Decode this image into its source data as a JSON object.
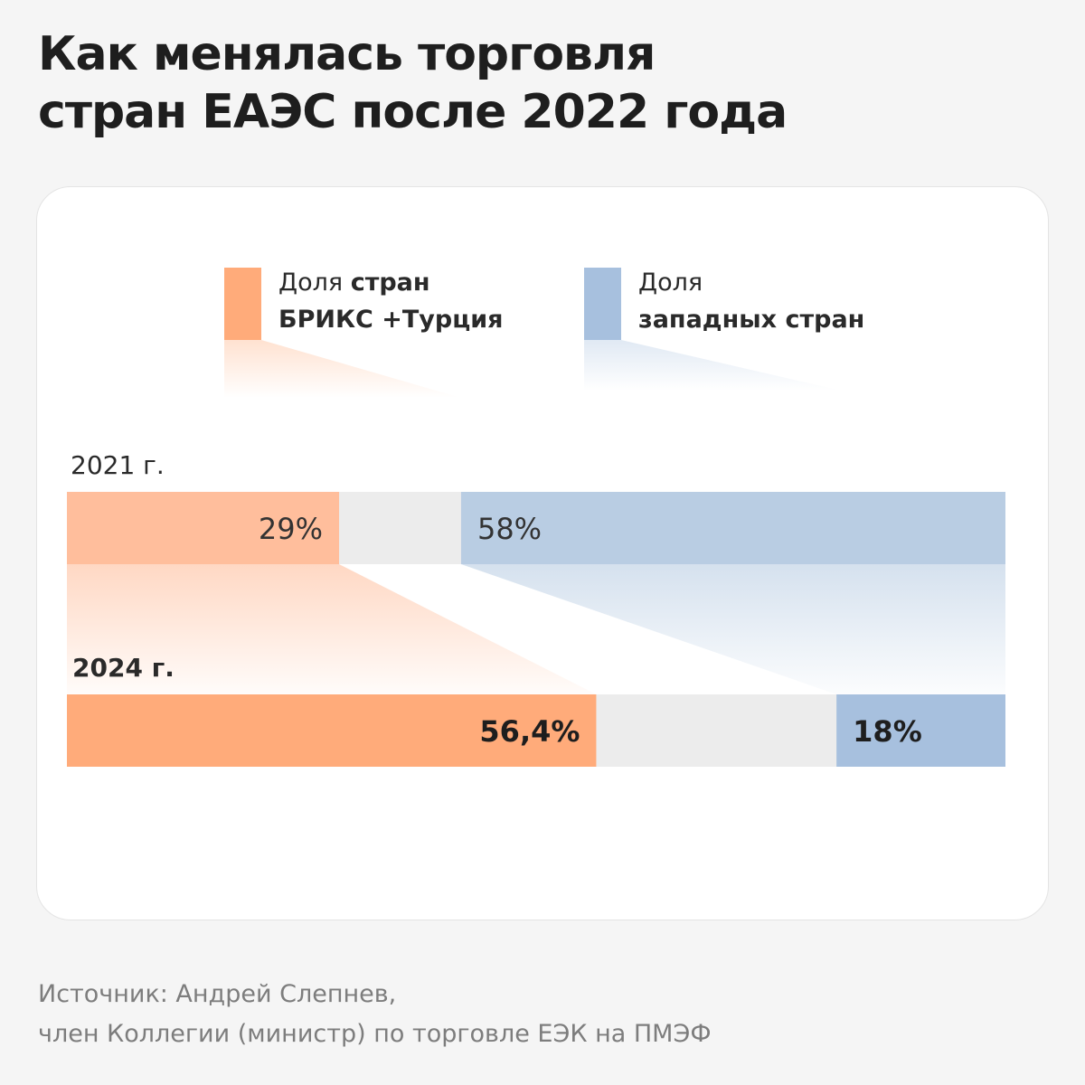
{
  "title": {
    "line1": "Как менялась торговля",
    "line2": "стран ЕАЭС после 2022 года"
  },
  "legend": {
    "brics": {
      "line1_a": "Доля ",
      "line1_b": "стран",
      "line2": "БРИКС +Турция"
    },
    "west": {
      "line1": "Доля",
      "line2": "западных стран"
    }
  },
  "source": {
    "line1": "Источник: Андрей Слепнев,",
    "line2": "член Коллегии (министр) по торговле ЕЭК на ПМЭФ"
  },
  "colors": {
    "brics_2021": "#ffbe9c",
    "brics_2024": "#ffab7a",
    "west_2021": "#b9cde3",
    "west_2024": "#a7c0de",
    "other": "#ececec"
  },
  "chart_data": {
    "type": "bar",
    "orientation": "horizontal",
    "stacked": true,
    "categories": [
      "2021 г.",
      "2024 г."
    ],
    "series": [
      {
        "name": "Доля стран БРИКС +Турция",
        "values": [
          29,
          56.4
        ],
        "labels": [
          "29%",
          "56,4%"
        ]
      },
      {
        "name": "Доля западных стран",
        "values": [
          58,
          18
        ],
        "labels": [
          "58%",
          "18%"
        ]
      }
    ],
    "unit": "%",
    "xlim": [
      0,
      100
    ],
    "legend_position": "top"
  }
}
